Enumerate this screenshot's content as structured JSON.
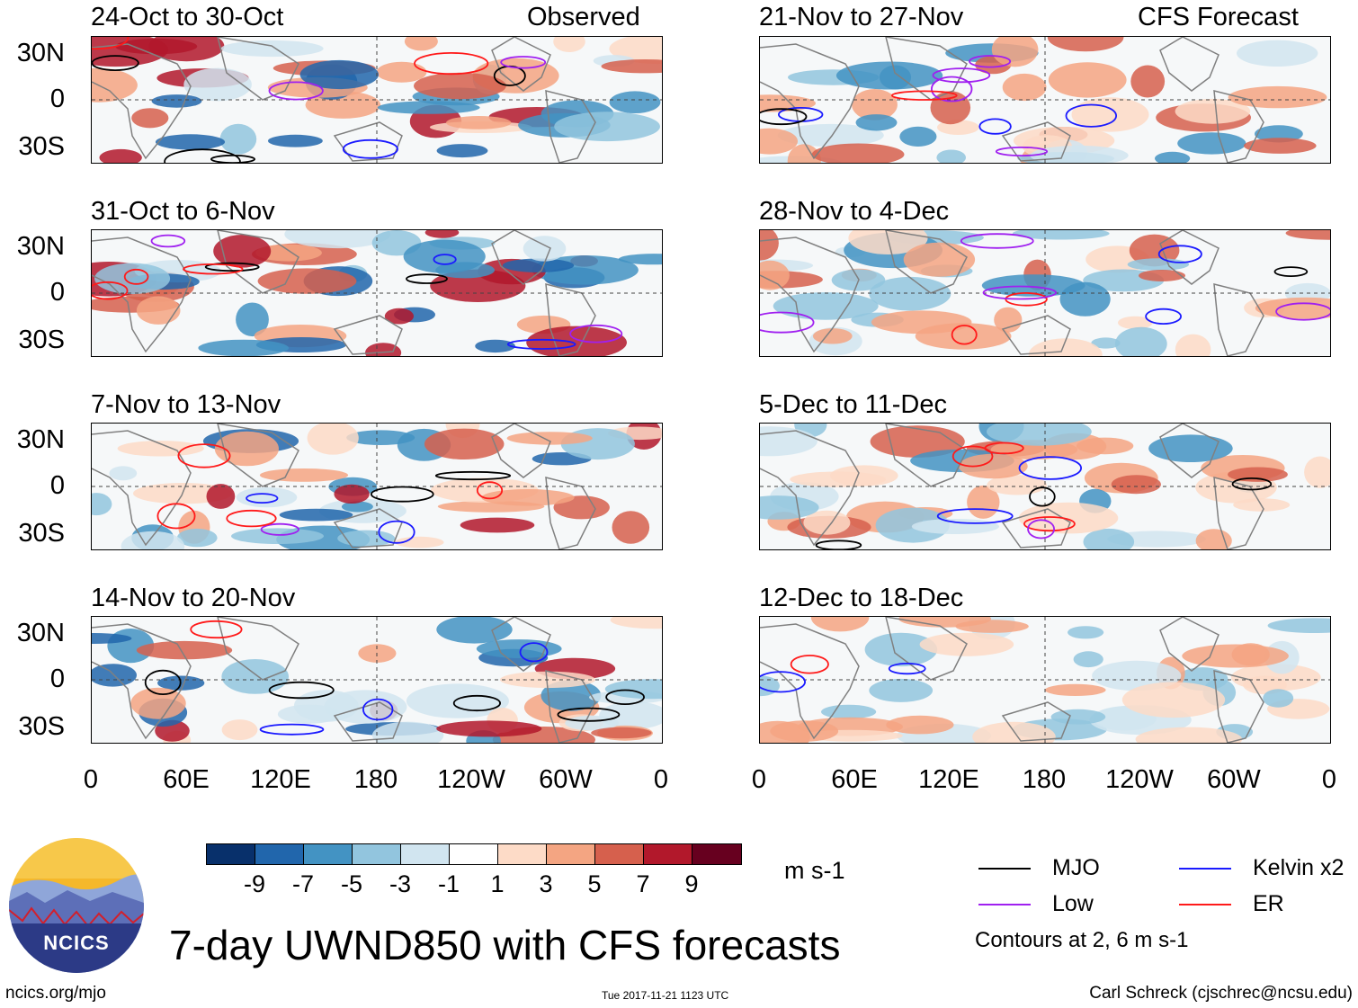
{
  "panels": [
    {
      "title": "24-Oct to 30-Oct",
      "label": "Observed",
      "column": "observed"
    },
    {
      "title": "31-Oct to 6-Nov",
      "label": "",
      "column": "observed"
    },
    {
      "title": "7-Nov to 13-Nov",
      "label": "",
      "column": "observed"
    },
    {
      "title": "14-Nov to 20-Nov",
      "label": "",
      "column": "observed"
    },
    {
      "title": "21-Nov to 27-Nov",
      "label": "CFS Forecast",
      "column": "forecast"
    },
    {
      "title": "28-Nov to 4-Dec",
      "label": "",
      "column": "forecast"
    },
    {
      "title": "5-Dec to 11-Dec",
      "label": "",
      "column": "forecast"
    },
    {
      "title": "12-Dec to 18-Dec",
      "label": "",
      "column": "forecast"
    }
  ],
  "lat_labels": [
    "30N",
    "0",
    "30S"
  ],
  "lon_labels": [
    "0",
    "60E",
    "120E",
    "180",
    "120W",
    "60W",
    "0"
  ],
  "colorbar": {
    "colors": [
      "#08306b",
      "#2166ac",
      "#4393c3",
      "#92c5de",
      "#d1e5f0",
      "#ffffff",
      "#fddbc7",
      "#f4a582",
      "#d6604d",
      "#b2182b",
      "#67001f"
    ],
    "ticks": [
      "-9",
      "-7",
      "-5",
      "-3",
      "-1",
      "1",
      "3",
      "5",
      "7",
      "9"
    ],
    "units": "m s-1"
  },
  "legend": [
    {
      "name": "MJO",
      "color": "#000000"
    },
    {
      "name": "Kelvin x2",
      "color": "#1a1aff"
    },
    {
      "name": "Low",
      "color": "#a020f0"
    },
    {
      "name": "ER",
      "color": "#ff1a1a"
    }
  ],
  "contours_note": "Contours at 2, 6 m s-1",
  "title": "7-day UWND850 with CFS forecasts",
  "logo_text": "NCICS",
  "footer": {
    "url": "ncics.org/mjo",
    "timestamp": "Tue 2017-11-21 1123 UTC",
    "author": "Carl Schreck (cjschrec@ncsu.edu)"
  }
}
